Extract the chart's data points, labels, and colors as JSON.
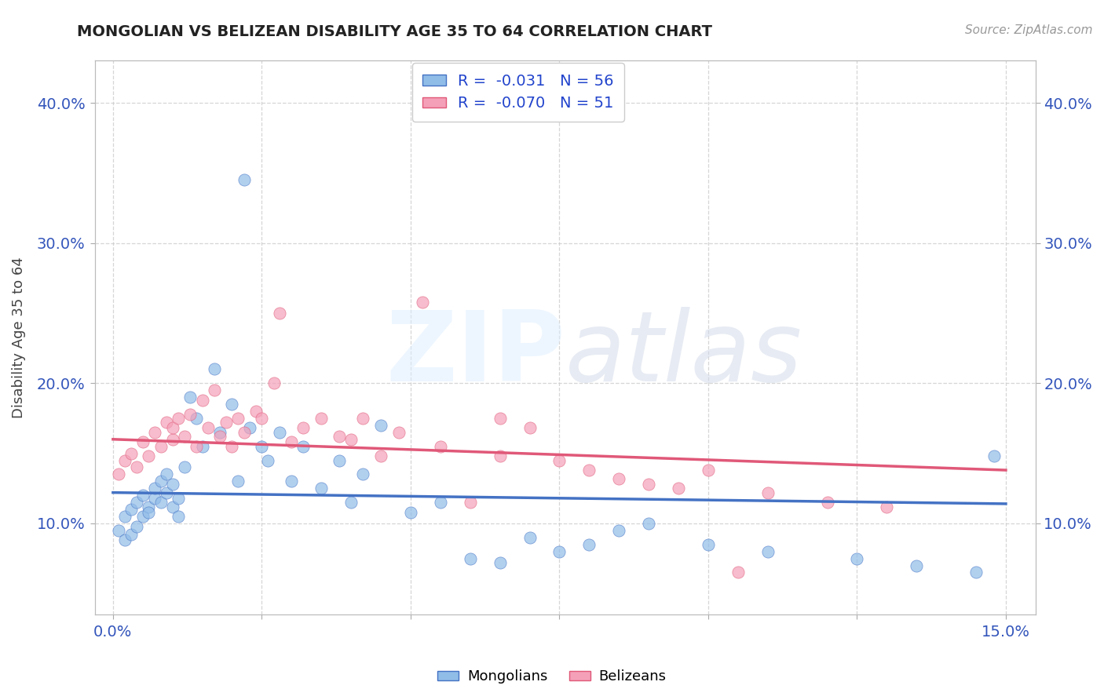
{
  "title": "MONGOLIAN VS BELIZEAN DISABILITY AGE 35 TO 64 CORRELATION CHART",
  "source_text": "Source: ZipAtlas.com",
  "ylabel": "Disability Age 35 to 64",
  "xlim": [
    -0.003,
    0.155
  ],
  "ylim": [
    0.035,
    0.43
  ],
  "x_tick_positions": [
    0.0,
    0.025,
    0.05,
    0.075,
    0.1,
    0.125,
    0.15
  ],
  "x_tick_labels": [
    "0.0%",
    "",
    "",
    "",
    "",
    "",
    "15.0%"
  ],
  "y_tick_positions": [
    0.1,
    0.2,
    0.3,
    0.4
  ],
  "y_tick_labels": [
    "10.0%",
    "20.0%",
    "30.0%",
    "40.0%"
  ],
  "mongolian_color": "#90bce8",
  "belizean_color": "#f4a0b8",
  "mongolian_line_color": "#4472c4",
  "belizean_line_color": "#e05878",
  "watermark": "ZIPatlas",
  "background_color": "#ffffff",
  "grid_color": "#cccccc",
  "mong_x": [
    0.001,
    0.002,
    0.002,
    0.003,
    0.003,
    0.004,
    0.004,
    0.005,
    0.005,
    0.006,
    0.006,
    0.007,
    0.007,
    0.008,
    0.008,
    0.009,
    0.009,
    0.01,
    0.01,
    0.011,
    0.011,
    0.012,
    0.013,
    0.014,
    0.015,
    0.017,
    0.018,
    0.02,
    0.021,
    0.022,
    0.023,
    0.025,
    0.026,
    0.028,
    0.03,
    0.032,
    0.035,
    0.038,
    0.04,
    0.042,
    0.045,
    0.05,
    0.055,
    0.06,
    0.065,
    0.07,
    0.075,
    0.08,
    0.085,
    0.09,
    0.1,
    0.11,
    0.125,
    0.135,
    0.145,
    0.148
  ],
  "mong_y": [
    0.095,
    0.088,
    0.105,
    0.092,
    0.11,
    0.098,
    0.115,
    0.105,
    0.12,
    0.112,
    0.108,
    0.118,
    0.125,
    0.115,
    0.13,
    0.122,
    0.135,
    0.112,
    0.128,
    0.105,
    0.118,
    0.14,
    0.19,
    0.175,
    0.155,
    0.21,
    0.165,
    0.185,
    0.13,
    0.345,
    0.168,
    0.155,
    0.145,
    0.165,
    0.13,
    0.155,
    0.125,
    0.145,
    0.115,
    0.135,
    0.17,
    0.108,
    0.115,
    0.075,
    0.072,
    0.09,
    0.08,
    0.085,
    0.095,
    0.1,
    0.085,
    0.08,
    0.075,
    0.07,
    0.065,
    0.148
  ],
  "bel_x": [
    0.001,
    0.002,
    0.003,
    0.004,
    0.005,
    0.006,
    0.007,
    0.008,
    0.009,
    0.01,
    0.01,
    0.011,
    0.012,
    0.013,
    0.014,
    0.015,
    0.016,
    0.017,
    0.018,
    0.019,
    0.02,
    0.021,
    0.022,
    0.024,
    0.025,
    0.027,
    0.028,
    0.03,
    0.032,
    0.035,
    0.038,
    0.04,
    0.042,
    0.045,
    0.048,
    0.052,
    0.055,
    0.06,
    0.065,
    0.07,
    0.075,
    0.08,
    0.085,
    0.09,
    0.095,
    0.1,
    0.105,
    0.11,
    0.12,
    0.13,
    0.065
  ],
  "bel_y": [
    0.135,
    0.145,
    0.15,
    0.14,
    0.158,
    0.148,
    0.165,
    0.155,
    0.172,
    0.16,
    0.168,
    0.175,
    0.162,
    0.178,
    0.155,
    0.188,
    0.168,
    0.195,
    0.162,
    0.172,
    0.155,
    0.175,
    0.165,
    0.18,
    0.175,
    0.2,
    0.25,
    0.158,
    0.168,
    0.175,
    0.162,
    0.16,
    0.175,
    0.148,
    0.165,
    0.258,
    0.155,
    0.115,
    0.148,
    0.168,
    0.145,
    0.138,
    0.132,
    0.128,
    0.125,
    0.138,
    0.065,
    0.122,
    0.115,
    0.112,
    0.175
  ],
  "mong_trend_x0": 0.0,
  "mong_trend_x1": 0.15,
  "mong_trend_y0": 0.122,
  "mong_trend_y1": 0.114,
  "bel_trend_x0": 0.0,
  "bel_trend_x1": 0.15,
  "bel_trend_y0": 0.16,
  "bel_trend_y1": 0.138
}
